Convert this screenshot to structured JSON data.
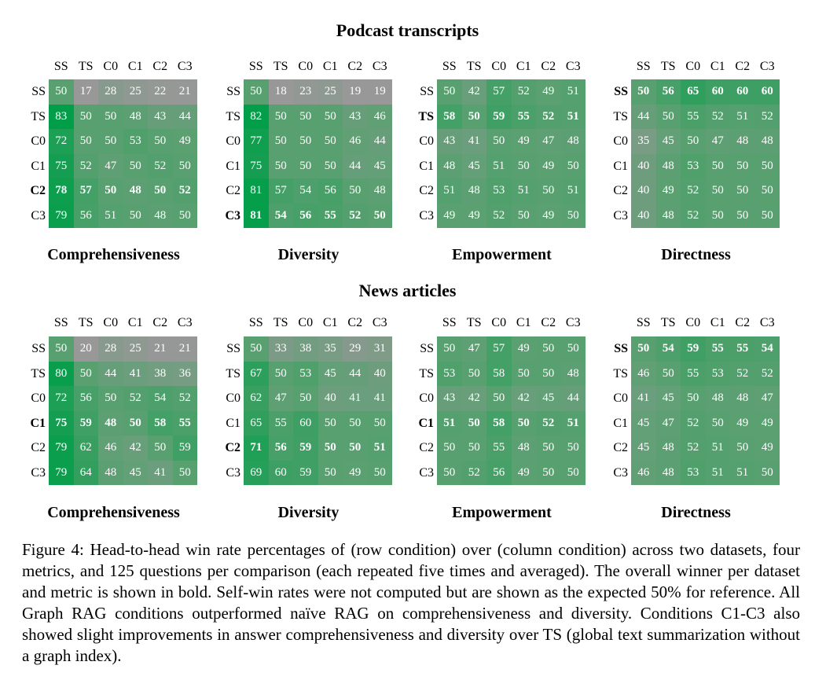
{
  "row_labels": [
    "SS",
    "TS",
    "C0",
    "C1",
    "C2",
    "C3"
  ],
  "col_labels": [
    "SS",
    "TS",
    "C0",
    "C1",
    "C2",
    "C3"
  ],
  "caption": "Figure 4: Head-to-head win rate percentages of (row condition) over (column condition) across two datasets, four metrics, and 125 questions per comparison (each repeated five times and averaged). The overall winner per dataset and metric is shown in bold. Self-win rates were not computed but are shown as the expected 50% for reference. All Graph RAG conditions outperformed naïve RAG on comprehensiveness and diversity. Conditions C1-C3 also showed slight improvements in answer comprehensiveness and diversity over TS (global text summarization without a graph index).",
  "chart_data": [
    {
      "type": "heatmap",
      "dataset": "Podcast transcripts",
      "title": "Comprehensiveness",
      "bold_row": "C2",
      "rows": [
        "SS",
        "TS",
        "C0",
        "C1",
        "C2",
        "C3"
      ],
      "columns": [
        "SS",
        "TS",
        "C0",
        "C1",
        "C2",
        "C3"
      ],
      "values": [
        [
          50,
          17,
          28,
          25,
          22,
          21
        ],
        [
          83,
          50,
          50,
          48,
          43,
          44
        ],
        [
          72,
          50,
          50,
          53,
          50,
          49
        ],
        [
          75,
          52,
          47,
          50,
          52,
          50
        ],
        [
          78,
          57,
          50,
          48,
          50,
          52
        ],
        [
          79,
          56,
          51,
          50,
          48,
          50
        ]
      ]
    },
    {
      "type": "heatmap",
      "dataset": "Podcast transcripts",
      "title": "Diversity",
      "bold_row": "C3",
      "rows": [
        "SS",
        "TS",
        "C0",
        "C1",
        "C2",
        "C3"
      ],
      "columns": [
        "SS",
        "TS",
        "C0",
        "C1",
        "C2",
        "C3"
      ],
      "values": [
        [
          50,
          18,
          23,
          25,
          19,
          19
        ],
        [
          82,
          50,
          50,
          50,
          43,
          46
        ],
        [
          77,
          50,
          50,
          50,
          46,
          44
        ],
        [
          75,
          50,
          50,
          50,
          44,
          45
        ],
        [
          81,
          57,
          54,
          56,
          50,
          48
        ],
        [
          81,
          54,
          56,
          55,
          52,
          50
        ]
      ]
    },
    {
      "type": "heatmap",
      "dataset": "Podcast transcripts",
      "title": "Empowerment",
      "bold_row": "TS",
      "rows": [
        "SS",
        "TS",
        "C0",
        "C1",
        "C2",
        "C3"
      ],
      "columns": [
        "SS",
        "TS",
        "C0",
        "C1",
        "C2",
        "C3"
      ],
      "values": [
        [
          50,
          42,
          57,
          52,
          49,
          51
        ],
        [
          58,
          50,
          59,
          55,
          52,
          51
        ],
        [
          43,
          41,
          50,
          49,
          47,
          48
        ],
        [
          48,
          45,
          51,
          50,
          49,
          50
        ],
        [
          51,
          48,
          53,
          51,
          50,
          51
        ],
        [
          49,
          49,
          52,
          50,
          49,
          50
        ]
      ]
    },
    {
      "type": "heatmap",
      "dataset": "Podcast transcripts",
      "title": "Directness",
      "bold_row": "SS",
      "rows": [
        "SS",
        "TS",
        "C0",
        "C1",
        "C2",
        "C3"
      ],
      "columns": [
        "SS",
        "TS",
        "C0",
        "C1",
        "C2",
        "C3"
      ],
      "values": [
        [
          50,
          56,
          65,
          60,
          60,
          60
        ],
        [
          44,
          50,
          55,
          52,
          51,
          52
        ],
        [
          35,
          45,
          50,
          47,
          48,
          48
        ],
        [
          40,
          48,
          53,
          50,
          50,
          50
        ],
        [
          40,
          49,
          52,
          50,
          50,
          50
        ],
        [
          40,
          48,
          52,
          50,
          50,
          50
        ]
      ]
    },
    {
      "type": "heatmap",
      "dataset": "News articles",
      "title": "Comprehensiveness",
      "bold_row": "C1",
      "rows": [
        "SS",
        "TS",
        "C0",
        "C1",
        "C2",
        "C3"
      ],
      "columns": [
        "SS",
        "TS",
        "C0",
        "C1",
        "C2",
        "C3"
      ],
      "values": [
        [
          50,
          20,
          28,
          25,
          21,
          21
        ],
        [
          80,
          50,
          44,
          41,
          38,
          36
        ],
        [
          72,
          56,
          50,
          52,
          54,
          52
        ],
        [
          75,
          59,
          48,
          50,
          58,
          55
        ],
        [
          79,
          62,
          46,
          42,
          50,
          59
        ],
        [
          79,
          64,
          48,
          45,
          41,
          50
        ]
      ]
    },
    {
      "type": "heatmap",
      "dataset": "News articles",
      "title": "Diversity",
      "bold_row": "C2",
      "rows": [
        "SS",
        "TS",
        "C0",
        "C1",
        "C2",
        "C3"
      ],
      "columns": [
        "SS",
        "TS",
        "C0",
        "C1",
        "C2",
        "C3"
      ],
      "values": [
        [
          50,
          33,
          38,
          35,
          29,
          31
        ],
        [
          67,
          50,
          53,
          45,
          44,
          40
        ],
        [
          62,
          47,
          50,
          40,
          41,
          41
        ],
        [
          65,
          55,
          60,
          50,
          50,
          50
        ],
        [
          71,
          56,
          59,
          50,
          50,
          51
        ],
        [
          69,
          60,
          59,
          50,
          49,
          50
        ]
      ]
    },
    {
      "type": "heatmap",
      "dataset": "News articles",
      "title": "Empowerment",
      "bold_row": "C1",
      "rows": [
        "SS",
        "TS",
        "C0",
        "C1",
        "C2",
        "C3"
      ],
      "columns": [
        "SS",
        "TS",
        "C0",
        "C1",
        "C2",
        "C3"
      ],
      "values": [
        [
          50,
          47,
          57,
          49,
          50,
          50
        ],
        [
          53,
          50,
          58,
          50,
          50,
          48
        ],
        [
          43,
          42,
          50,
          42,
          45,
          44
        ],
        [
          51,
          50,
          58,
          50,
          52,
          51
        ],
        [
          50,
          50,
          55,
          48,
          50,
          50
        ],
        [
          50,
          52,
          56,
          49,
          50,
          50
        ]
      ]
    },
    {
      "type": "heatmap",
      "dataset": "News articles",
      "title": "Directness",
      "bold_row": "SS",
      "rows": [
        "SS",
        "TS",
        "C0",
        "C1",
        "C2",
        "C3"
      ],
      "columns": [
        "SS",
        "TS",
        "C0",
        "C1",
        "C2",
        "C3"
      ],
      "values": [
        [
          50,
          54,
          59,
          55,
          55,
          54
        ],
        [
          46,
          50,
          55,
          53,
          52,
          52
        ],
        [
          41,
          45,
          50,
          48,
          48,
          47
        ],
        [
          45,
          47,
          52,
          50,
          49,
          49
        ],
        [
          45,
          48,
          52,
          51,
          50,
          49
        ],
        [
          46,
          48,
          53,
          51,
          51,
          50
        ]
      ]
    }
  ]
}
